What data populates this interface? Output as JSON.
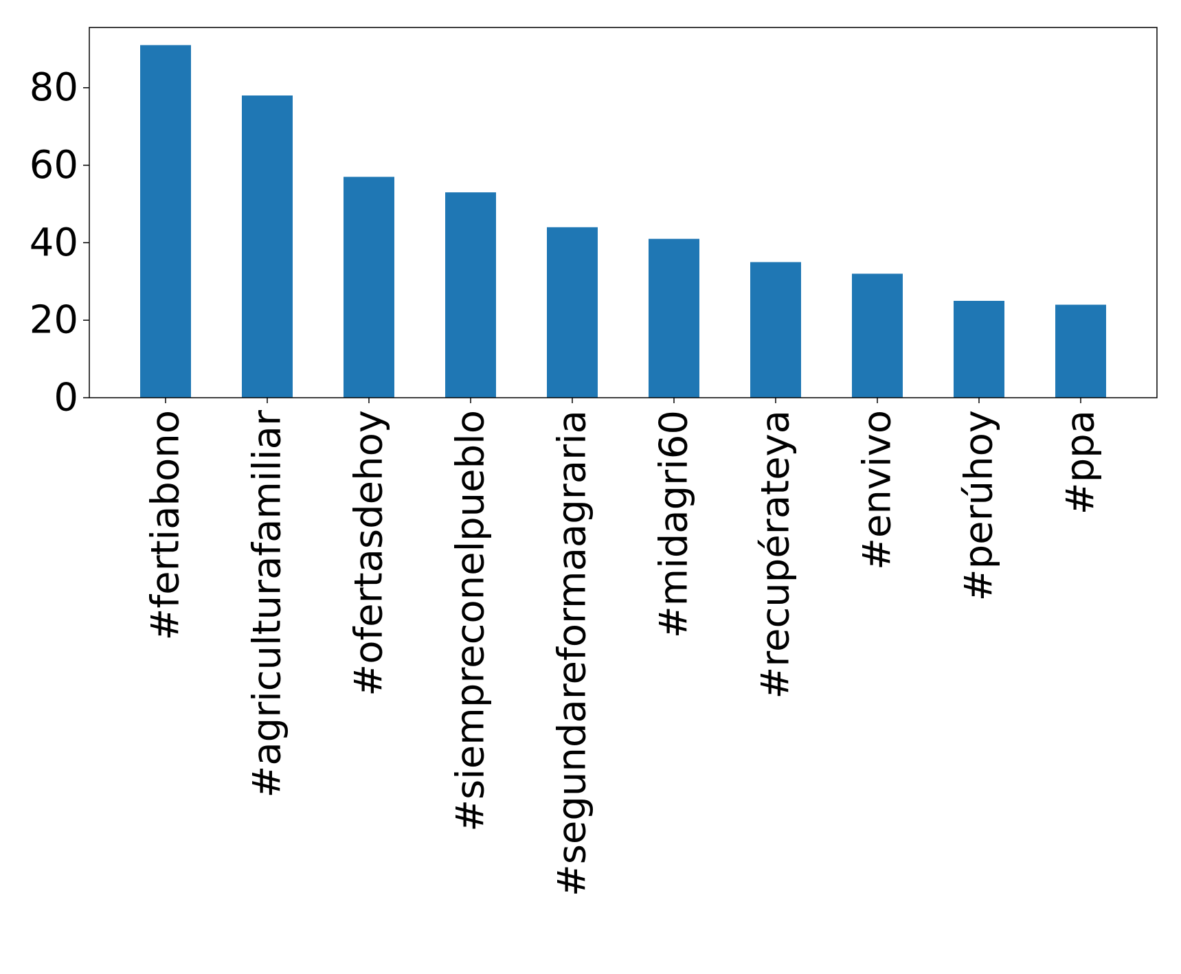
{
  "chart_data": {
    "type": "bar",
    "categories": [
      "#fertiabono",
      "#agriculturafamiliar",
      "#ofertasdehoy",
      "#siempreconelpueblo",
      "#segundareformaagraria",
      "#midagri60",
      "#recupérateya",
      "#envivo",
      "#perúhoy",
      "#ppa"
    ],
    "values": [
      91,
      78,
      57,
      53,
      44,
      41,
      35,
      32,
      25,
      24
    ],
    "title": "",
    "xlabel": "",
    "ylabel": "",
    "ylim": [
      0,
      95.55
    ],
    "yticks": [
      0,
      20,
      40,
      60,
      80
    ],
    "ytick_labels": [
      "0",
      "20",
      "40",
      "60",
      "80"
    ],
    "bar_color": "#1f77b4",
    "grid": false,
    "legend": "none",
    "x_tick_rotation": "vertical"
  }
}
